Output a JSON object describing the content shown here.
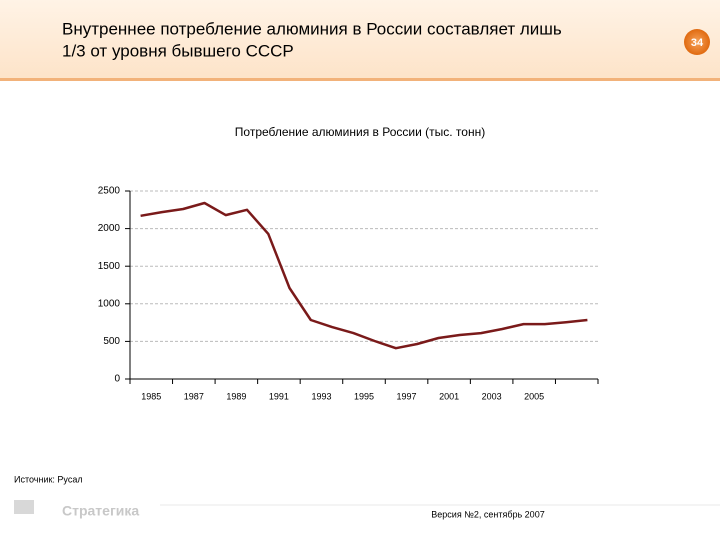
{
  "slide": {
    "heading_lines": [
      "Внутреннее потребление алюминия в России составляет лишь",
      "1/3 от уровня бывшего СССР"
    ],
    "page_number": 34,
    "source": "Источник: Русал",
    "logo": "Стратегика",
    "version": "Версия №2, сентябрь 2007"
  },
  "chart_data": {
    "type": "line",
    "title": "Потребление алюминия в России (тыс. тонн)",
    "categories": [
      "1985",
      null,
      "1987",
      null,
      "1989",
      null,
      "1991",
      null,
      "1993",
      null,
      "1995",
      null,
      "1997",
      null,
      "2001",
      null,
      "2003",
      null,
      "2005",
      null,
      null,
      null
    ],
    "series": [
      {
        "name": null,
        "color": "#7a1a1a",
        "values": [
          2170,
          2220,
          2260,
          2340,
          2180,
          2250,
          1930,
          1210,
          785,
          690,
          610,
          505,
          410,
          465,
          545,
          585,
          610,
          665,
          730,
          730,
          755,
          785
        ]
      }
    ],
    "ylim": [
      0,
      2500
    ],
    "yticks": [
      0,
      500,
      1000,
      1500,
      2000,
      2500
    ],
    "grid": true
  }
}
